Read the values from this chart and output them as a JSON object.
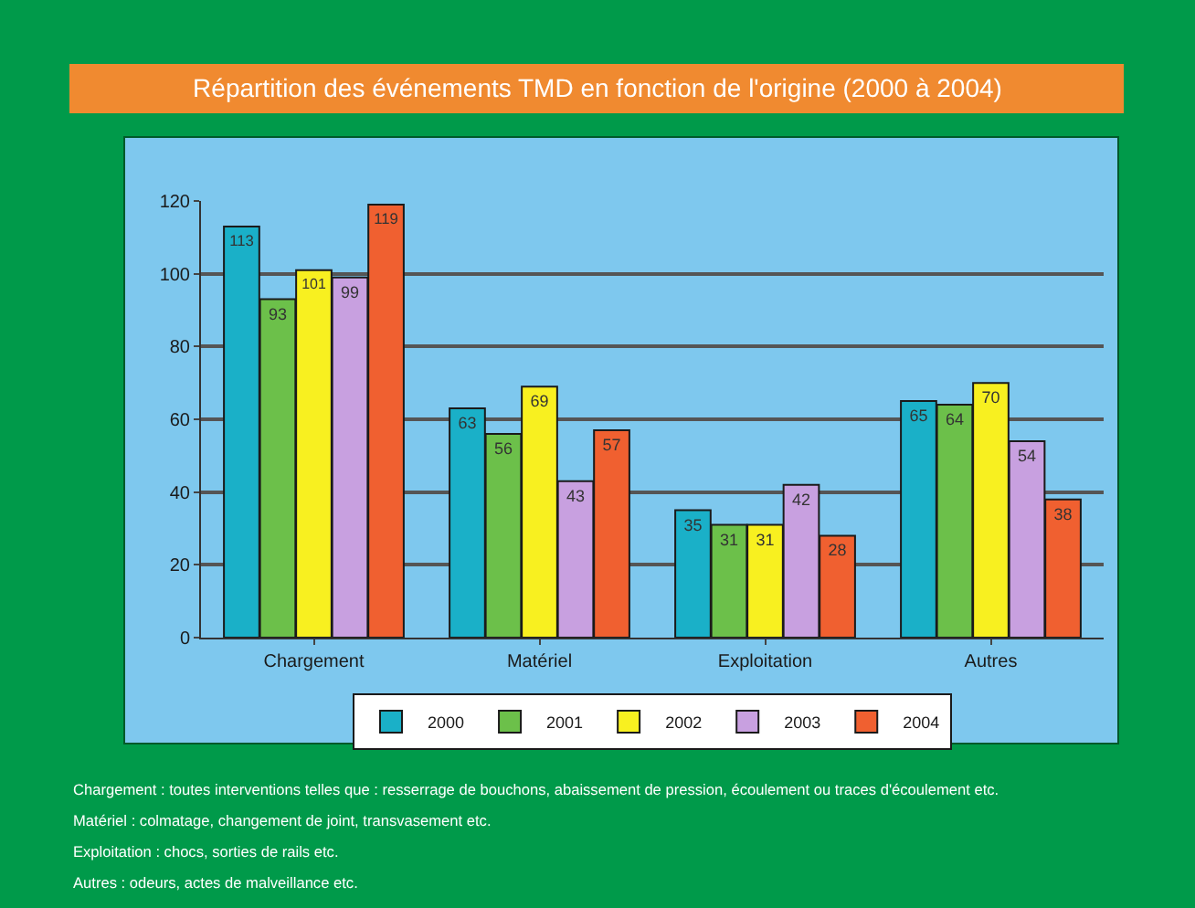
{
  "chart_data": {
    "type": "bar",
    "title": "Répartition des événements TMD en fonction de l'origine (2000 à 2004)",
    "categories": [
      "Chargement",
      "Matériel",
      "Exploitation",
      "Autres"
    ],
    "series": [
      {
        "name": "2000",
        "color": "#1ab0c8",
        "values": [
          113,
          63,
          35,
          65
        ]
      },
      {
        "name": "2001",
        "color": "#6cc04a",
        "values": [
          93,
          56,
          31,
          64
        ]
      },
      {
        "name": "2002",
        "color": "#f8f020",
        "values": [
          101,
          69,
          31,
          70
        ]
      },
      {
        "name": "2003",
        "color": "#c8a0e0",
        "values": [
          99,
          43,
          42,
          54
        ]
      },
      {
        "name": "2004",
        "color": "#f06030",
        "values": [
          119,
          57,
          28,
          38
        ]
      }
    ],
    "ylim": [
      0,
      120
    ],
    "yticks": [
      0,
      20,
      40,
      60,
      80,
      100,
      120
    ],
    "grid": "y",
    "legend": "bottom",
    "data_labels": true,
    "annotations": [
      "Chargement : toutes interventions telles que : resserrage de bouchons, abaissement de pression, écoulement ou traces d'écoulement etc.",
      "Matériel : colmatage, changement de joint, transvasement etc.",
      "Exploitation : chocs, sorties de rails etc.",
      "Autres : odeurs, actes de malveillance etc."
    ]
  }
}
